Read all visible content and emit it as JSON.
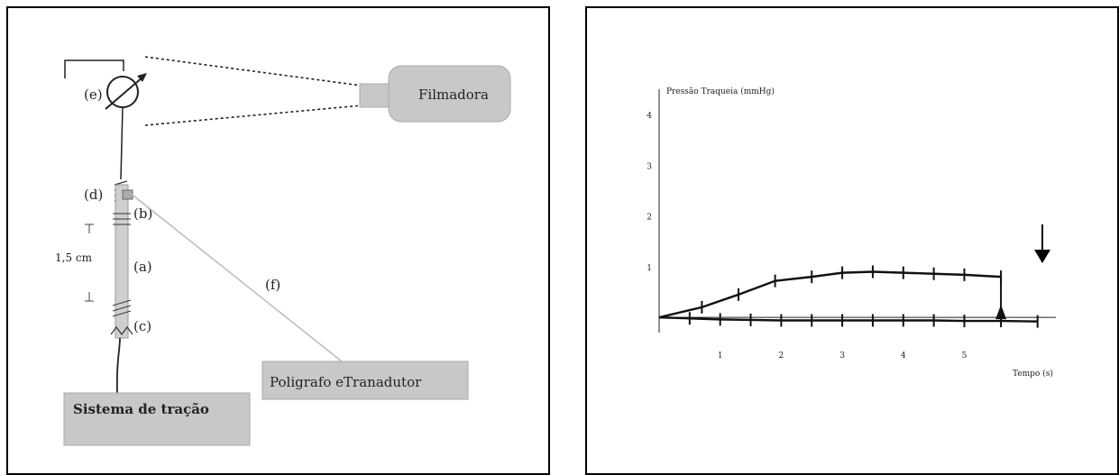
{
  "apparatus": {
    "label_e": "(e)",
    "label_d": "(d)",
    "label_b": "(b)",
    "label_a": "(a)",
    "label_c": "(c)",
    "label_f": "(f)",
    "length_label": "1,5 cm",
    "camera_label": "Filmadora",
    "polygraph_label": "Poligrafo eTranadutor",
    "traction_label": "Sistema de tração",
    "box_fill": "#c8c8c8"
  },
  "chart_data": {
    "type": "line",
    "ylabel": "Pressão Traqueia (mmHg)",
    "xlabel": "Tempo (s)",
    "y_tick_labels": [
      "4",
      "3",
      "2",
      "1"
    ],
    "x_tick_labels": [
      "1",
      "2",
      "3",
      "4",
      "5"
    ],
    "series": [
      {
        "x": [
          0,
          0.7,
          1.3,
          1.9,
          2.5,
          3.0,
          3.5,
          4.0,
          4.5,
          5.0,
          5.6
        ],
        "y": [
          0,
          0.2,
          0.45,
          0.72,
          0.8,
          0.88,
          0.9,
          0.88,
          0.86,
          0.84,
          0.8
        ]
      },
      {
        "x": [
          0,
          0.5,
          1.0,
          1.5,
          2.0,
          2.5,
          3.0,
          3.5,
          4.0,
          4.5,
          5.0,
          5.6,
          6.2
        ],
        "y": [
          0,
          -0.02,
          -0.04,
          -0.05,
          -0.06,
          -0.06,
          -0.06,
          -0.06,
          -0.06,
          -0.06,
          -0.07,
          -0.07,
          -0.08
        ]
      }
    ],
    "xlim": [
      0,
      6.5
    ],
    "ylim": [
      -0.3,
      4.5
    ],
    "annotation": "arrow marking end of traction"
  }
}
